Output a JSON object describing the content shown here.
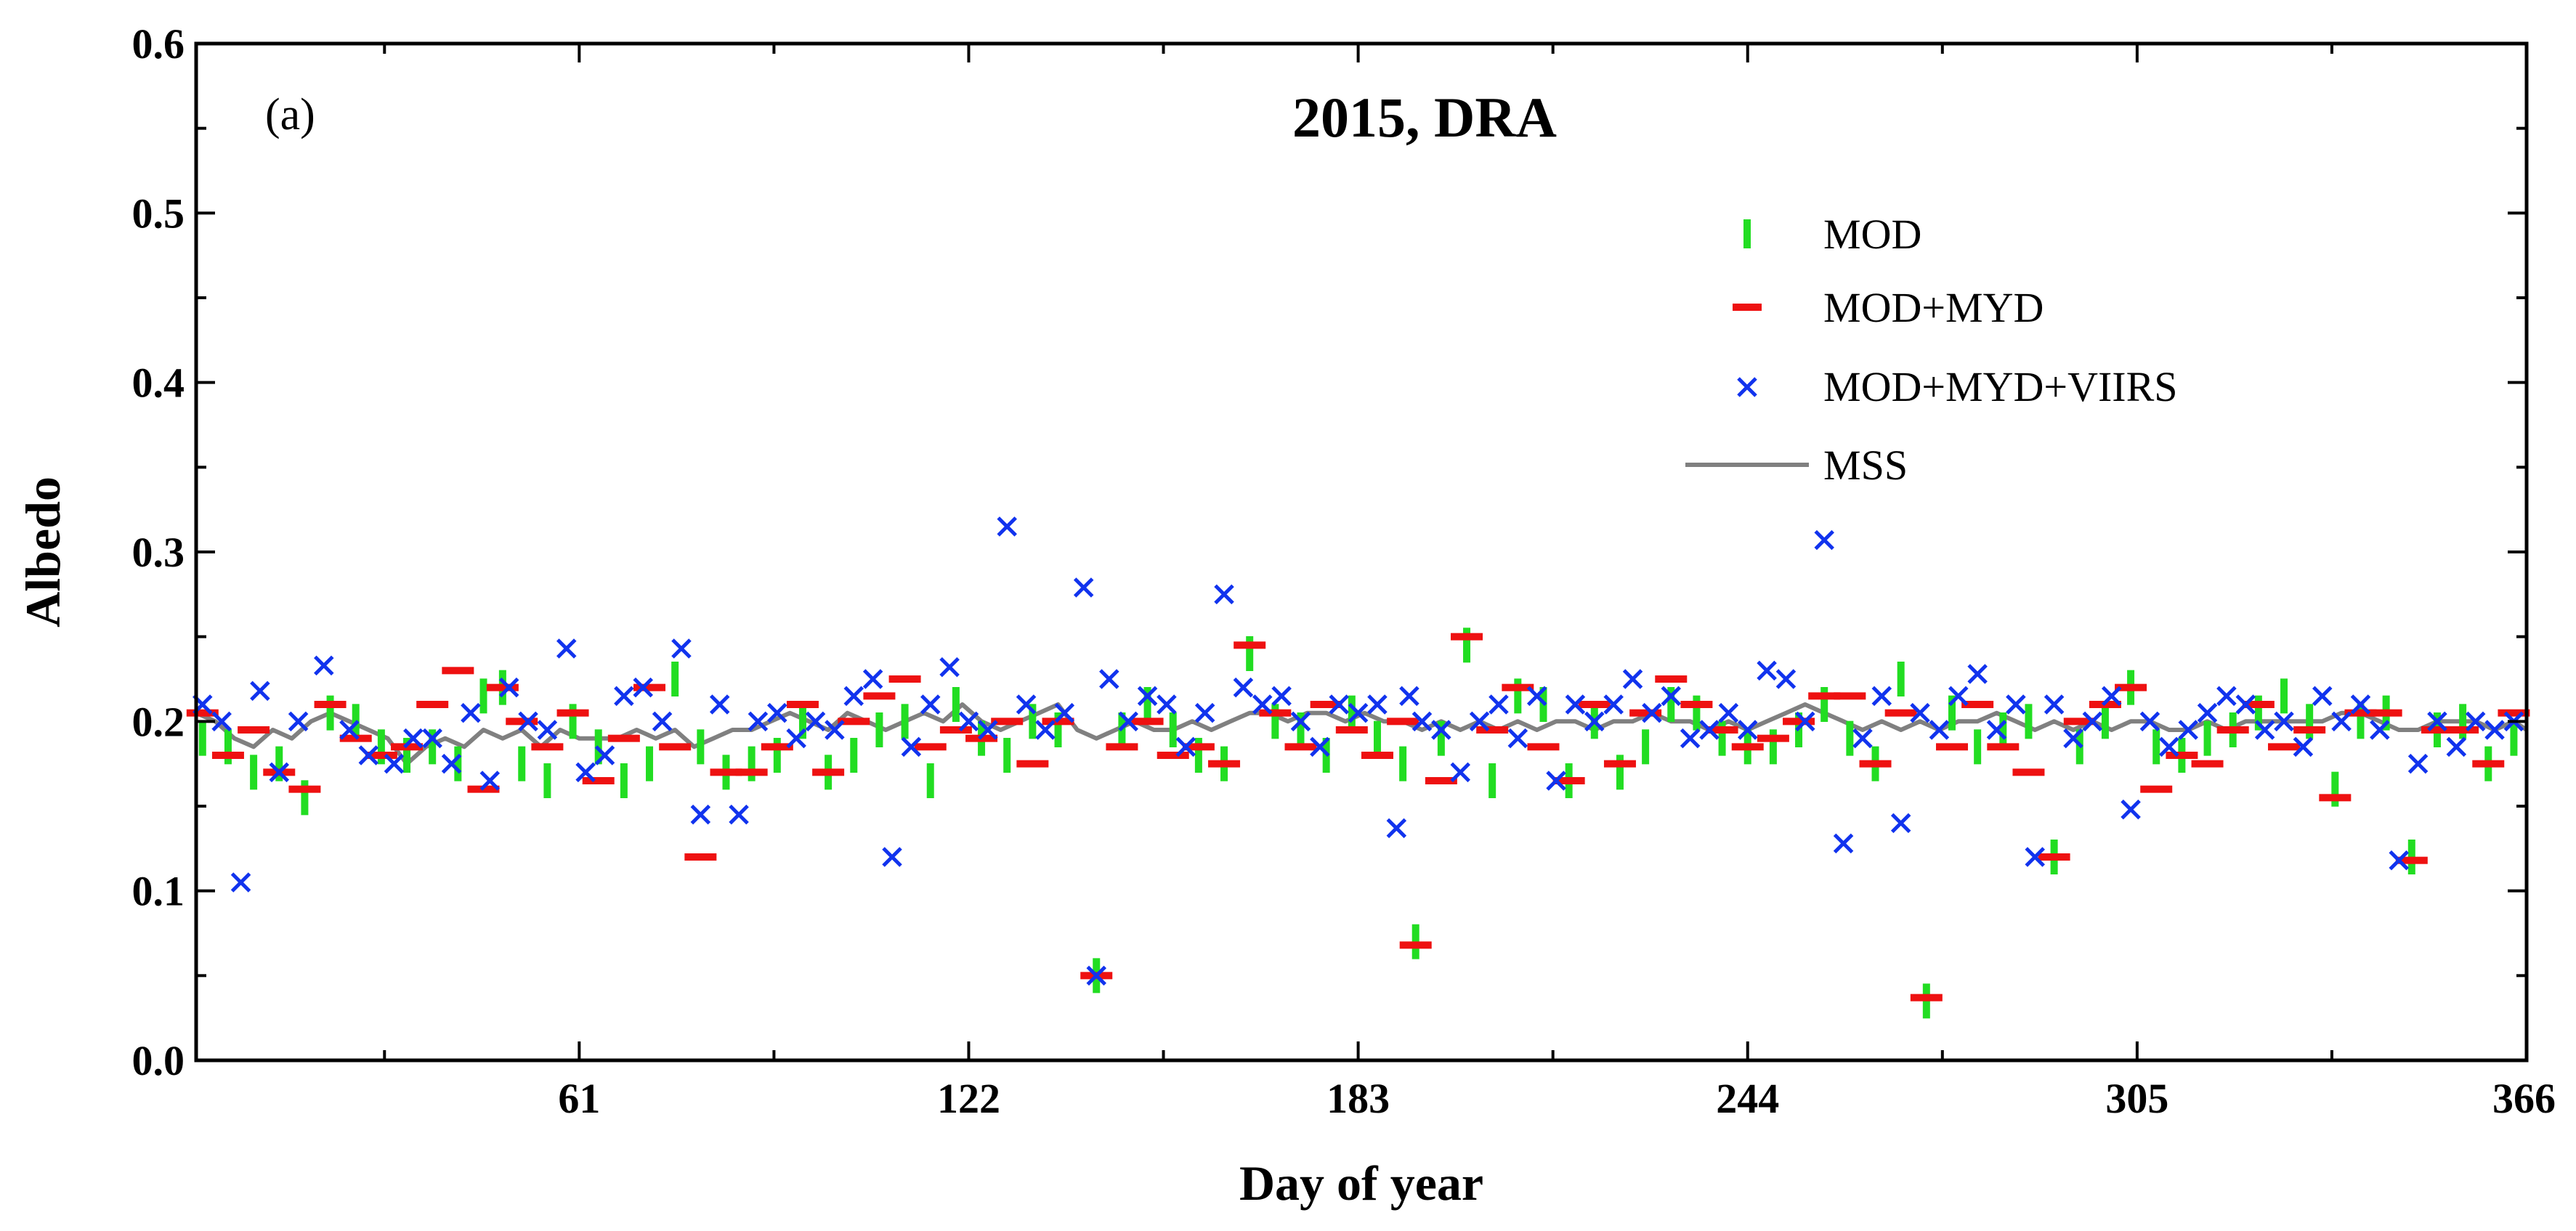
{
  "chart_data": {
    "type": "scatter",
    "title": "2015, DRA",
    "panel_label": "(a)",
    "xlabel": "Day of year",
    "ylabel": "Albedo",
    "xlim": [
      1,
      366
    ],
    "ylim": [
      0.0,
      0.6
    ],
    "x_ticks": [
      61,
      122,
      183,
      244,
      305,
      366
    ],
    "x_tick_labels": [
      "61",
      "122",
      "183",
      "244",
      "305",
      "366"
    ],
    "y_ticks": [
      0.0,
      0.1,
      0.2,
      0.3,
      0.4,
      0.5,
      0.6
    ],
    "y_tick_labels": [
      "0.0",
      "0.1",
      "0.2",
      "0.3",
      "0.4",
      "0.5",
      "0.6"
    ],
    "legend_position": "top-right",
    "colors": {
      "MOD": "#22dd22",
      "MOD+MYD": "#ee1111",
      "MOD+MYD+VIIRS": "#1133ee",
      "MSS": "#808080",
      "axis": "#000000"
    },
    "series": [
      {
        "name": "MOD",
        "marker": "vertical-bar",
        "x": [
          2,
          6,
          10,
          14,
          18,
          22,
          26,
          30,
          34,
          38,
          42,
          46,
          49,
          52,
          56,
          60,
          64,
          68,
          72,
          76,
          80,
          84,
          88,
          92,
          96,
          100,
          104,
          108,
          112,
          116,
          120,
          124,
          128,
          132,
          136,
          142,
          146,
          150,
          154,
          158,
          162,
          166,
          170,
          174,
          178,
          182,
          186,
          190,
          192,
          196,
          200,
          204,
          208,
          212,
          216,
          220,
          224,
          228,
          232,
          236,
          240,
          244,
          248,
          252,
          256,
          260,
          264,
          268,
          272,
          276,
          280,
          284,
          288,
          292,
          296,
          300,
          304,
          308,
          312,
          316,
          320,
          324,
          328,
          332,
          336,
          340,
          344,
          348,
          352,
          356,
          360,
          364
        ],
        "y": [
          0.19,
          0.185,
          0.17,
          0.175,
          0.155,
          0.205,
          0.2,
          0.185,
          0.18,
          0.185,
          0.175,
          0.215,
          0.22,
          0.175,
          0.165,
          0.2,
          0.185,
          0.165,
          0.175,
          0.225,
          0.185,
          0.17,
          0.175,
          0.18,
          0.2,
          0.17,
          0.18,
          0.195,
          0.2,
          0.165,
          0.21,
          0.19,
          0.18,
          0.2,
          0.195,
          0.05,
          0.195,
          0.21,
          0.195,
          0.18,
          0.175,
          0.24,
          0.2,
          0.195,
          0.18,
          0.205,
          0.19,
          0.175,
          0.07,
          0.19,
          0.245,
          0.165,
          0.215,
          0.21,
          0.165,
          0.2,
          0.17,
          0.185,
          0.21,
          0.205,
          0.19,
          0.185,
          0.185,
          0.195,
          0.21,
          0.19,
          0.175,
          0.225,
          0.035,
          0.205,
          0.185,
          0.195,
          0.2,
          0.12,
          0.185,
          0.2,
          0.22,
          0.185,
          0.18,
          0.19,
          0.195,
          0.205,
          0.215,
          0.2,
          0.16,
          0.2,
          0.205,
          0.12,
          0.195,
          0.2,
          0.175,
          0.19
        ]
      },
      {
        "name": "MOD+MYD",
        "marker": "horizontal-bar",
        "x": [
          2,
          6,
          10,
          14,
          18,
          22,
          26,
          30,
          34,
          38,
          42,
          46,
          49,
          52,
          56,
          60,
          64,
          68,
          72,
          76,
          80,
          84,
          88,
          92,
          96,
          100,
          104,
          108,
          112,
          116,
          120,
          124,
          128,
          132,
          136,
          142,
          146,
          150,
          154,
          158,
          162,
          166,
          170,
          174,
          178,
          182,
          186,
          190,
          192,
          196,
          200,
          204,
          208,
          212,
          216,
          220,
          224,
          228,
          232,
          236,
          240,
          244,
          248,
          252,
          256,
          260,
          264,
          268,
          272,
          276,
          280,
          284,
          288,
          292,
          296,
          300,
          304,
          308,
          312,
          316,
          320,
          324,
          328,
          332,
          336,
          340,
          344,
          348,
          352,
          356,
          360,
          364
        ],
        "y": [
          0.205,
          0.18,
          0.195,
          0.17,
          0.16,
          0.21,
          0.19,
          0.18,
          0.185,
          0.21,
          0.23,
          0.16,
          0.22,
          0.2,
          0.185,
          0.205,
          0.165,
          0.19,
          0.22,
          0.185,
          0.12,
          0.17,
          0.17,
          0.185,
          0.21,
          0.17,
          0.2,
          0.215,
          0.225,
          0.185,
          0.195,
          0.19,
          0.2,
          0.175,
          0.2,
          0.05,
          0.185,
          0.2,
          0.18,
          0.185,
          0.175,
          0.245,
          0.205,
          0.185,
          0.21,
          0.195,
          0.18,
          0.2,
          0.068,
          0.165,
          0.25,
          0.195,
          0.22,
          0.185,
          0.165,
          0.21,
          0.175,
          0.205,
          0.225,
          0.21,
          0.195,
          0.185,
          0.19,
          0.2,
          0.215,
          0.215,
          0.175,
          0.205,
          0.037,
          0.185,
          0.21,
          0.185,
          0.17,
          0.12,
          0.2,
          0.21,
          0.22,
          0.16,
          0.18,
          0.175,
          0.195,
          0.21,
          0.185,
          0.195,
          0.155,
          0.205,
          0.205,
          0.118,
          0.195,
          0.195,
          0.175,
          0.205
        ]
      },
      {
        "name": "MOD+MYD+VIIRS",
        "marker": "x",
        "x": [
          2,
          5,
          8,
          11,
          14,
          17,
          21,
          25,
          28,
          32,
          35,
          38,
          41,
          44,
          47,
          50,
          53,
          56,
          59,
          62,
          65,
          68,
          71,
          74,
          77,
          80,
          83,
          86,
          89,
          92,
          95,
          98,
          101,
          104,
          107,
          110,
          113,
          116,
          119,
          122,
          125,
          128,
          131,
          134,
          137,
          140,
          142,
          144,
          147,
          150,
          153,
          156,
          159,
          162,
          165,
          168,
          171,
          174,
          177,
          180,
          183,
          186,
          189,
          191,
          193,
          196,
          199,
          202,
          205,
          208,
          211,
          214,
          217,
          220,
          223,
          226,
          229,
          232,
          235,
          238,
          241,
          244,
          247,
          250,
          253,
          256,
          259,
          262,
          265,
          268,
          271,
          274,
          277,
          280,
          283,
          286,
          289,
          292,
          295,
          298,
          301,
          304,
          307,
          310,
          313,
          316,
          319,
          322,
          325,
          328,
          331,
          334,
          337,
          340,
          343,
          346,
          349,
          352,
          355,
          358,
          361,
          364
        ],
        "y": [
          0.21,
          0.2,
          0.105,
          0.218,
          0.17,
          0.2,
          0.233,
          0.195,
          0.18,
          0.175,
          0.19,
          0.19,
          0.175,
          0.205,
          0.165,
          0.22,
          0.2,
          0.195,
          0.243,
          0.17,
          0.18,
          0.215,
          0.22,
          0.2,
          0.243,
          0.145,
          0.21,
          0.145,
          0.2,
          0.205,
          0.19,
          0.2,
          0.195,
          0.215,
          0.225,
          0.12,
          0.185,
          0.21,
          0.232,
          0.2,
          0.195,
          0.315,
          0.21,
          0.195,
          0.205,
          0.279,
          0.05,
          0.225,
          0.2,
          0.215,
          0.21,
          0.185,
          0.205,
          0.275,
          0.22,
          0.21,
          0.215,
          0.2,
          0.185,
          0.21,
          0.205,
          0.21,
          0.137,
          0.215,
          0.2,
          0.195,
          0.17,
          0.2,
          0.21,
          0.19,
          0.215,
          0.165,
          0.21,
          0.2,
          0.21,
          0.225,
          0.205,
          0.215,
          0.19,
          0.195,
          0.205,
          0.195,
          0.23,
          0.225,
          0.2,
          0.307,
          0.128,
          0.19,
          0.215,
          0.14,
          0.205,
          0.195,
          0.215,
          0.228,
          0.195,
          0.21,
          0.12,
          0.21,
          0.19,
          0.2,
          0.215,
          0.148,
          0.2,
          0.185,
          0.195,
          0.205,
          0.215,
          0.21,
          0.195,
          0.2,
          0.185,
          0.215,
          0.2,
          0.21,
          0.195,
          0.118,
          0.175,
          0.2,
          0.185,
          0.2,
          0.195,
          0.2
        ]
      },
      {
        "name": "MSS",
        "marker": "line",
        "x": [
          1,
          4,
          7,
          10,
          13,
          16,
          19,
          22,
          25,
          28,
          31,
          34,
          37,
          40,
          43,
          46,
          49,
          52,
          55,
          58,
          61,
          64,
          67,
          70,
          73,
          76,
          79,
          82,
          85,
          88,
          91,
          94,
          97,
          100,
          103,
          106,
          109,
          112,
          115,
          118,
          121,
          124,
          127,
          130,
          133,
          136,
          139,
          142,
          145,
          148,
          151,
          154,
          157,
          160,
          163,
          166,
          169,
          172,
          175,
          178,
          181,
          184,
          187,
          190,
          193,
          196,
          199,
          202,
          205,
          208,
          211,
          214,
          217,
          220,
          223,
          226,
          229,
          232,
          235,
          238,
          241,
          244,
          247,
          250,
          253,
          256,
          259,
          262,
          265,
          268,
          271,
          274,
          277,
          280,
          283,
          286,
          289,
          292,
          295,
          298,
          301,
          304,
          307,
          310,
          313,
          316,
          319,
          322,
          325,
          328,
          331,
          334,
          337,
          340,
          343,
          346,
          349,
          352,
          355,
          358,
          361,
          364,
          366
        ],
        "y": [
          0.205,
          0.2,
          0.19,
          0.185,
          0.195,
          0.19,
          0.2,
          0.205,
          0.2,
          0.195,
          0.19,
          0.175,
          0.185,
          0.19,
          0.185,
          0.195,
          0.19,
          0.195,
          0.185,
          0.195,
          0.19,
          0.19,
          0.19,
          0.195,
          0.19,
          0.195,
          0.185,
          0.19,
          0.195,
          0.195,
          0.2,
          0.205,
          0.2,
          0.195,
          0.205,
          0.2,
          0.195,
          0.2,
          0.205,
          0.2,
          0.21,
          0.2,
          0.195,
          0.2,
          0.205,
          0.21,
          0.195,
          0.19,
          0.195,
          0.2,
          0.195,
          0.195,
          0.2,
          0.195,
          0.2,
          0.205,
          0.205,
          0.2,
          0.205,
          0.205,
          0.2,
          0.205,
          0.2,
          0.2,
          0.195,
          0.2,
          0.195,
          0.2,
          0.195,
          0.2,
          0.195,
          0.2,
          0.2,
          0.195,
          0.2,
          0.2,
          0.205,
          0.2,
          0.2,
          0.195,
          0.2,
          0.195,
          0.2,
          0.205,
          0.21,
          0.205,
          0.2,
          0.195,
          0.2,
          0.195,
          0.2,
          0.195,
          0.2,
          0.2,
          0.205,
          0.2,
          0.195,
          0.2,
          0.195,
          0.2,
          0.195,
          0.2,
          0.2,
          0.195,
          0.195,
          0.2,
          0.195,
          0.2,
          0.2,
          0.2,
          0.2,
          0.2,
          0.205,
          0.205,
          0.2,
          0.195,
          0.195,
          0.2,
          0.2,
          0.2,
          0.195,
          0.2,
          0.195
        ]
      }
    ]
  }
}
